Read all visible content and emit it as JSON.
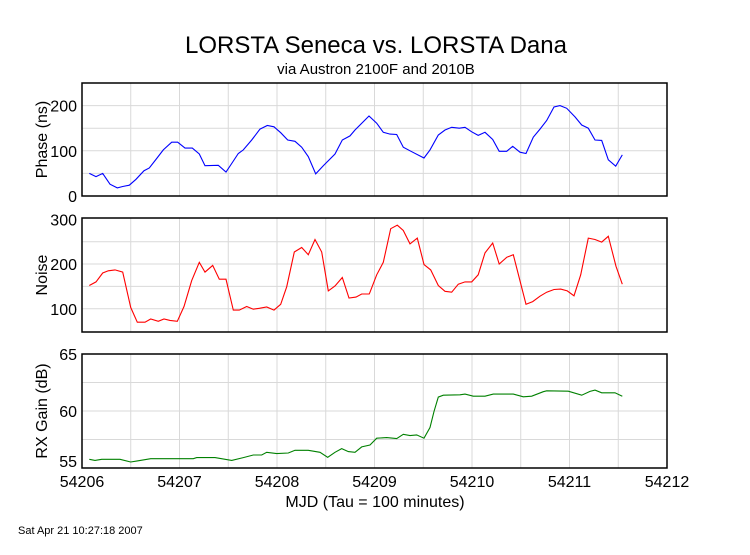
{
  "title": "LORSTA Seneca vs. LORSTA Dana",
  "subtitle": "via Austron 2100F and 2010B",
  "footer_timestamp": "Sat Apr 21 10:27:18 2007",
  "chart_data": [
    {
      "type": "line",
      "ylabel": "Phase (ns)",
      "color": "#0000ff",
      "xlim": [
        54206,
        54212
      ],
      "ylim": [
        0,
        250
      ],
      "yticks": [
        0,
        100,
        200
      ],
      "ygrid_step": 50,
      "x": [
        0.075,
        0.144,
        0.212,
        0.287,
        0.362,
        0.417,
        0.485,
        0.554,
        0.636,
        0.69,
        0.759,
        0.834,
        0.92,
        0.982,
        1.056,
        1.131,
        1.203,
        1.262,
        1.398,
        1.477,
        1.535,
        1.603,
        1.654,
        1.741,
        1.826,
        1.901,
        1.969,
        2.038,
        2.11,
        2.185,
        2.253,
        2.321,
        2.397,
        2.475,
        2.595,
        2.67,
        2.749,
        2.8,
        2.944,
        3.023,
        3.09,
        3.159,
        3.228,
        3.295,
        3.382,
        3.508,
        3.569,
        3.654,
        3.723,
        3.792,
        3.87,
        3.928,
        3.997,
        4.064,
        4.133,
        4.212,
        4.279,
        4.356,
        4.417,
        4.492,
        4.554,
        4.629,
        4.697,
        4.766,
        4.841,
        4.903,
        4.971,
        5.056,
        5.125,
        5.193,
        5.262,
        5.33,
        5.398,
        5.474,
        5.542
      ],
      "x_offset": 54206,
      "y": [
        50,
        43,
        50,
        26,
        18,
        21,
        24,
        37,
        56,
        62,
        81,
        102,
        119,
        119,
        106,
        106,
        93,
        67,
        68,
        53,
        72,
        94,
        102,
        124,
        148,
        156,
        153,
        140,
        124,
        121,
        108,
        87,
        49,
        67,
        93,
        124,
        133,
        146,
        177,
        161,
        141,
        137,
        136,
        108,
        98,
        84,
        102,
        135,
        146,
        152,
        150,
        152,
        142,
        134,
        141,
        125,
        99,
        99,
        110,
        97,
        94,
        130,
        148,
        167,
        197,
        200,
        194,
        175,
        157,
        150,
        124,
        123,
        80,
        66,
        91
      ]
    },
    {
      "type": "line",
      "ylabel": "Noise",
      "color": "#ff0000",
      "xlim": [
        54206,
        54212
      ],
      "ylim": [
        48,
        303
      ],
      "yticks": [
        100,
        200,
        300
      ],
      "ygrid_step": 50,
      "x_offset": 54206,
      "x": [
        0.075,
        0.144,
        0.212,
        0.27,
        0.338,
        0.417,
        0.499,
        0.567,
        0.646,
        0.705,
        0.783,
        0.841,
        0.903,
        0.977,
        1.046,
        1.125,
        1.203,
        1.262,
        1.341,
        1.408,
        1.477,
        1.552,
        1.613,
        1.689,
        1.757,
        1.818,
        1.894,
        1.969,
        2.038,
        2.099,
        2.177,
        2.253,
        2.321,
        2.39,
        2.458,
        2.526,
        2.595,
        2.67,
        2.738,
        2.81,
        2.869,
        2.946,
        2.954,
        3.023,
        3.09,
        3.166,
        3.234,
        3.295,
        3.364,
        3.439,
        3.508,
        3.576,
        3.654,
        3.723,
        3.792,
        3.859,
        3.928,
        3.997,
        4.064,
        4.133,
        4.212,
        4.279,
        4.356,
        4.424,
        4.554,
        4.623,
        4.697,
        4.766,
        4.841,
        4.91,
        4.977,
        5.046,
        5.115,
        5.193,
        5.262,
        5.33,
        5.398,
        5.477,
        5.542
      ],
      "y": [
        152,
        160,
        180,
        185,
        187,
        182,
        103,
        70,
        70,
        77,
        72,
        77,
        74,
        72,
        105,
        163,
        204,
        182,
        197,
        166,
        166,
        97,
        97,
        105,
        99,
        101,
        104,
        97,
        110,
        149,
        227,
        237,
        221,
        255,
        227,
        140,
        151,
        170,
        124,
        126,
        133,
        133,
        137,
        176,
        204,
        279,
        287,
        275,
        245,
        258,
        199,
        187,
        152,
        139,
        137,
        155,
        160,
        160,
        176,
        225,
        247,
        200,
        215,
        221,
        110,
        116,
        128,
        137,
        143,
        144,
        140,
        129,
        176,
        258,
        255,
        249,
        262,
        195,
        155
      ]
    },
    {
      "type": "line",
      "ylabel": "RX Gain (dB)",
      "xlabel": "MJD (Tau = 100 minutes)",
      "color": "#008000",
      "xlim": [
        54206,
        54212
      ],
      "xticks": [
        "54206",
        "54207",
        "54208",
        "54209",
        "54210",
        "54211",
        "54212"
      ],
      "ylim": [
        55,
        65
      ],
      "yticks": [
        55,
        60,
        65
      ],
      "ygrid_step": 2.5,
      "x_offset": 54206,
      "x": [
        0.075,
        0.133,
        0.202,
        0.39,
        0.499,
        0.567,
        0.705,
        1.142,
        1.176,
        1.364,
        1.535,
        1.654,
        1.757,
        1.843,
        1.894,
        1.997,
        2.116,
        2.185,
        2.321,
        2.441,
        2.52,
        2.595,
        2.664,
        2.731,
        2.8,
        2.869,
        2.954,
        3.023,
        3.125,
        3.228,
        3.295,
        3.364,
        3.433,
        3.508,
        3.569,
        3.61,
        3.654,
        3.706,
        3.877,
        3.928,
        4.013,
        4.133,
        4.218,
        4.424,
        4.526,
        4.612,
        4.731,
        4.766,
        4.988,
        5.125,
        5.21,
        5.262,
        5.33,
        5.467,
        5.542
      ],
      "y": [
        55.76,
        55.67,
        55.76,
        55.76,
        55.53,
        55.62,
        55.82,
        55.82,
        55.91,
        55.91,
        55.67,
        55.91,
        56.14,
        56.14,
        56.38,
        56.26,
        56.32,
        56.55,
        56.55,
        56.38,
        55.94,
        56.38,
        56.7,
        56.44,
        56.38,
        56.85,
        57.02,
        57.61,
        57.67,
        57.58,
        57.96,
        57.84,
        57.9,
        57.61,
        58.55,
        59.96,
        61.22,
        61.39,
        61.42,
        61.48,
        61.3,
        61.3,
        61.48,
        61.48,
        61.25,
        61.3,
        61.69,
        61.77,
        61.74,
        61.39,
        61.72,
        61.83,
        61.6,
        61.6,
        61.3
      ]
    }
  ]
}
